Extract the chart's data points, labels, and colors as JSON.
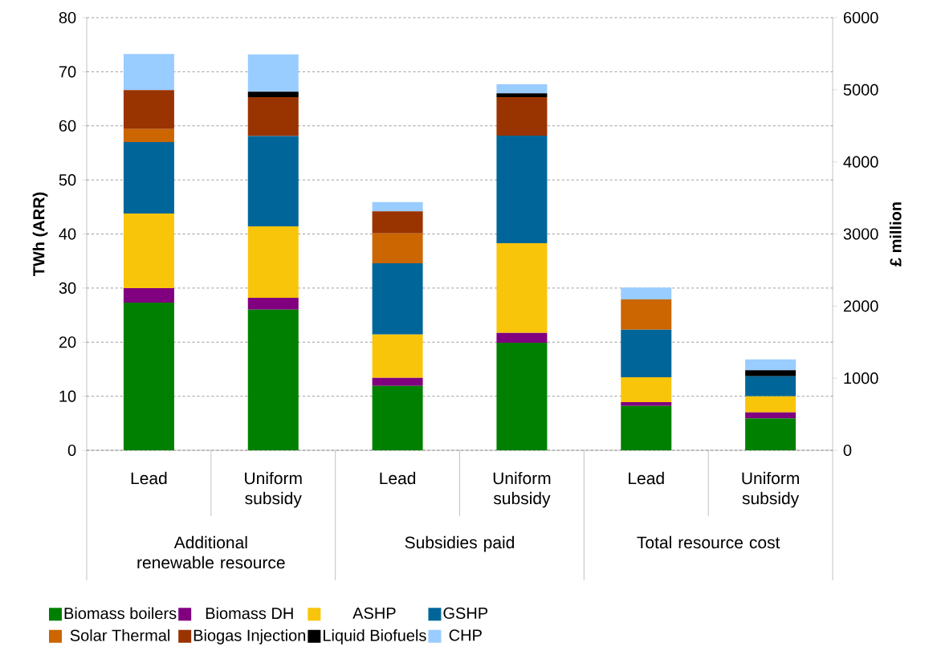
{
  "chart_data": {
    "type": "bar",
    "stacked": true,
    "categories": [
      "Lead",
      "Uniform subsidy",
      "Lead",
      "Uniform subsidy",
      "Lead",
      "Uniform subsidy"
    ],
    "annotations": [
      "Additional renewable resource",
      "Subsidies paid",
      "Total resource cost"
    ],
    "ylabel": "TWh (ARR)",
    "y2label": "£ million",
    "ylim": [
      0,
      80
    ],
    "yticks": [
      0,
      10,
      20,
      30,
      40,
      50,
      60,
      70,
      80
    ],
    "y2lim": [
      0,
      6000
    ],
    "y2ticks": [
      0,
      1000,
      2000,
      3000,
      4000,
      5000,
      6000
    ],
    "grid": "y",
    "legend": "bottom",
    "series": [
      {
        "name": "Biomass boilers",
        "color": "#008000",
        "values": [
          27.3,
          26.0,
          11.9,
          19.9,
          8.2,
          5.9
        ]
      },
      {
        "name": "Biomass DH",
        "color": "#800080",
        "values": [
          2.7,
          2.2,
          1.5,
          1.8,
          0.7,
          1.1
        ]
      },
      {
        "name": "ASHP",
        "color": "#f8c50a",
        "values": [
          13.8,
          13.2,
          8.0,
          16.6,
          4.6,
          3.0
        ]
      },
      {
        "name": "GSHP",
        "color": "#006699",
        "values": [
          13.2,
          16.7,
          13.2,
          19.9,
          8.8,
          3.7
        ]
      },
      {
        "name": "Solar Thermal",
        "color": "#cc6600",
        "values": [
          2.4,
          0,
          5.5,
          0,
          5.6,
          0
        ]
      },
      {
        "name": "Biogas Injection",
        "color": "#993300",
        "values": [
          7.2,
          7.2,
          4.1,
          7.1,
          0,
          0
        ]
      },
      {
        "name": "Liquid Biofuels",
        "color": "#000000",
        "values": [
          0,
          1.0,
          0,
          0.7,
          0,
          1.1
        ]
      },
      {
        "name": "CHP",
        "color": "#99ccff",
        "values": [
          6.7,
          6.9,
          1.7,
          1.7,
          2.2,
          2.0
        ]
      }
    ]
  }
}
